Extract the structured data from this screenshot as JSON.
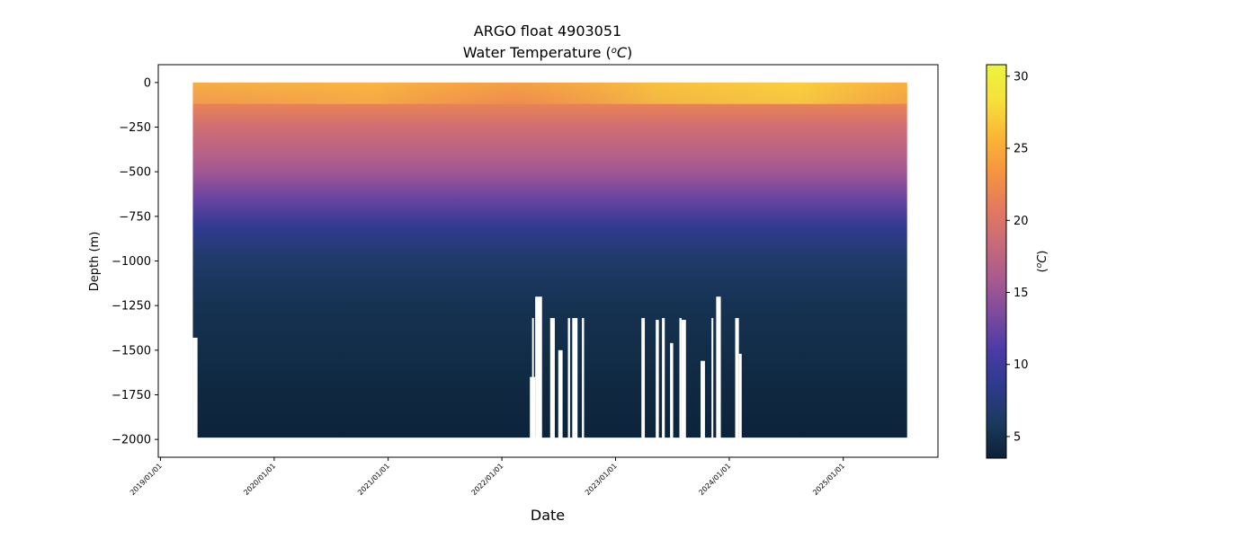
{
  "chart_data": {
    "type": "heatmap",
    "title_line1": "ARGO float 4903051",
    "title_line2_prefix": "Water Temperature (",
    "title_line2_unit_sup": "o",
    "title_line2_unit_C": "C",
    "title_line2_suffix": ")",
    "xlabel": "Date",
    "ylabel": "Depth (m)",
    "colorbar_label_prefix": "(",
    "colorbar_label_sup": "o",
    "colorbar_label_C": "C",
    "colorbar_label_suffix": ")",
    "x_range": [
      "2018-12-25",
      "2025-11-01"
    ],
    "y_range": [
      -2100,
      100
    ],
    "x_ticks": [
      {
        "date": "2019-01-01",
        "label": "2019/01/01"
      },
      {
        "date": "2020-01-01",
        "label": "2020/01/01"
      },
      {
        "date": "2021-01-01",
        "label": "2021/01/01"
      },
      {
        "date": "2022-01-01",
        "label": "2022/01/01"
      },
      {
        "date": "2023-01-01",
        "label": "2023/01/01"
      },
      {
        "date": "2024-01-01",
        "label": "2024/01/01"
      },
      {
        "date": "2025-01-01",
        "label": "2025/01/01"
      }
    ],
    "y_ticks": [
      {
        "value": 0,
        "label": "0"
      },
      {
        "value": -250,
        "label": "−250"
      },
      {
        "value": -500,
        "label": "−500"
      },
      {
        "value": -750,
        "label": "−750"
      },
      {
        "value": -1000,
        "label": "−1000"
      },
      {
        "value": -1250,
        "label": "−1250"
      },
      {
        "value": -1500,
        "label": "−1500"
      },
      {
        "value": -1750,
        "label": "−1750"
      },
      {
        "value": -2000,
        "label": "−2000"
      }
    ],
    "colorbar": {
      "vmin": 3.5,
      "vmax": 30.8,
      "ticks": [
        {
          "value": 5,
          "label": "5"
        },
        {
          "value": 10,
          "label": "10"
        },
        {
          "value": 15,
          "label": "15"
        },
        {
          "value": 20,
          "label": "20"
        },
        {
          "value": 25,
          "label": "25"
        },
        {
          "value": 30,
          "label": "30"
        }
      ],
      "colormap": "thermal",
      "stops": [
        "#0b2237",
        "#1b3a5e",
        "#2d3a8c",
        "#4a3aa6",
        "#7b4a9e",
        "#a85a8f",
        "#c86a7a",
        "#e47a5e",
        "#f5953f",
        "#fbb636",
        "#f7e03c",
        "#ecf43e"
      ]
    },
    "profile_start": "2019-04-15",
    "profile_end": "2025-07-25",
    "typical_max_depth": -1990,
    "depth_profile_mean_temp": [
      {
        "depth": 0,
        "temp": 24.5
      },
      {
        "depth": -100,
        "temp": 22
      },
      {
        "depth": -250,
        "temp": 19
      },
      {
        "depth": -400,
        "temp": 17
      },
      {
        "depth": -500,
        "temp": 15.5
      },
      {
        "depth": -650,
        "temp": 12.5
      },
      {
        "depth": -800,
        "temp": 9
      },
      {
        "depth": -1000,
        "temp": 6.5
      },
      {
        "depth": -1250,
        "temp": 5.2
      },
      {
        "depth": -1500,
        "temp": 4.6
      },
      {
        "depth": -1750,
        "temp": 4.1
      },
      {
        "depth": -2000,
        "temp": 3.7
      }
    ],
    "gaps": [
      {
        "start": "2019-04-15",
        "end": "2019-04-30",
        "max_depth": -1430
      },
      {
        "start": "2022-04-01",
        "end": "2022-04-18",
        "max_depth": -1650
      },
      {
        "start": "2022-04-18",
        "end": "2022-05-10",
        "max_depth": -1200
      },
      {
        "start": "2022-07-01",
        "end": "2022-07-15",
        "max_depth": -1500
      },
      {
        "start": "2022-08-15",
        "end": "2022-09-01",
        "max_depth": -1320
      },
      {
        "start": "2023-05-10",
        "end": "2023-05-20",
        "max_depth": -1330
      },
      {
        "start": "2023-06-25",
        "end": "2023-07-05",
        "max_depth": -1460
      },
      {
        "start": "2023-08-01",
        "end": "2023-08-15",
        "max_depth": -1330
      },
      {
        "start": "2023-10-01",
        "end": "2023-10-15",
        "max_depth": -1560
      },
      {
        "start": "2023-11-20",
        "end": "2023-12-05",
        "max_depth": -1200
      },
      {
        "start": "2024-02-01",
        "end": "2024-02-10",
        "max_depth": -1520
      }
    ],
    "no_data_windows": [
      {
        "start": "2022-04-08",
        "end": "2022-04-12"
      },
      {
        "start": "2022-06-05",
        "end": "2022-06-20"
      },
      {
        "start": "2022-08-01",
        "end": "2022-08-08"
      },
      {
        "start": "2022-09-15",
        "end": "2022-09-22"
      },
      {
        "start": "2023-03-25",
        "end": "2023-04-05"
      },
      {
        "start": "2023-05-30",
        "end": "2023-06-08"
      },
      {
        "start": "2023-07-25",
        "end": "2023-08-01"
      },
      {
        "start": "2023-11-05",
        "end": "2023-11-10"
      },
      {
        "start": "2024-01-20",
        "end": "2024-02-01"
      }
    ]
  }
}
